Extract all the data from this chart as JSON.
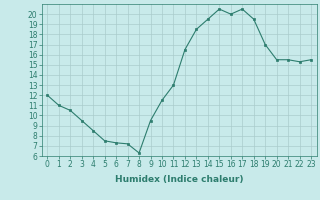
{
  "x": [
    0,
    1,
    2,
    3,
    4,
    5,
    6,
    7,
    8,
    9,
    10,
    11,
    12,
    13,
    14,
    15,
    16,
    17,
    18,
    19,
    20,
    21,
    22,
    23
  ],
  "y": [
    12,
    11,
    10.5,
    9.5,
    8.5,
    7.5,
    7.3,
    7.2,
    6.3,
    9.5,
    11.5,
    13,
    16.5,
    18.5,
    19.5,
    20.5,
    20,
    20.5,
    19.5,
    17,
    15.5,
    15.5,
    15.3,
    15.5
  ],
  "line_color": "#2d7d6e",
  "bg_color": "#c8eaea",
  "grid_color": "#aacccc",
  "xlabel": "Humidex (Indice chaleur)",
  "xlim": [
    -0.5,
    23.5
  ],
  "ylim": [
    6,
    21
  ],
  "yticks": [
    6,
    7,
    8,
    9,
    10,
    11,
    12,
    13,
    14,
    15,
    16,
    17,
    18,
    19,
    20
  ],
  "xticks": [
    0,
    1,
    2,
    3,
    4,
    5,
    6,
    7,
    8,
    9,
    10,
    11,
    12,
    13,
    14,
    15,
    16,
    17,
    18,
    19,
    20,
    21,
    22,
    23
  ],
  "xtick_labels": [
    "0",
    "1",
    "2",
    "3",
    "4",
    "5",
    "6",
    "7",
    "8",
    "9",
    "10",
    "11",
    "12",
    "13",
    "14",
    "15",
    "16",
    "17",
    "18",
    "19",
    "20",
    "21",
    "22",
    "23"
  ],
  "tick_fontsize": 5.5,
  "xlabel_fontsize": 6.5,
  "marker": "s",
  "marker_size": 1.8,
  "line_width": 0.8
}
